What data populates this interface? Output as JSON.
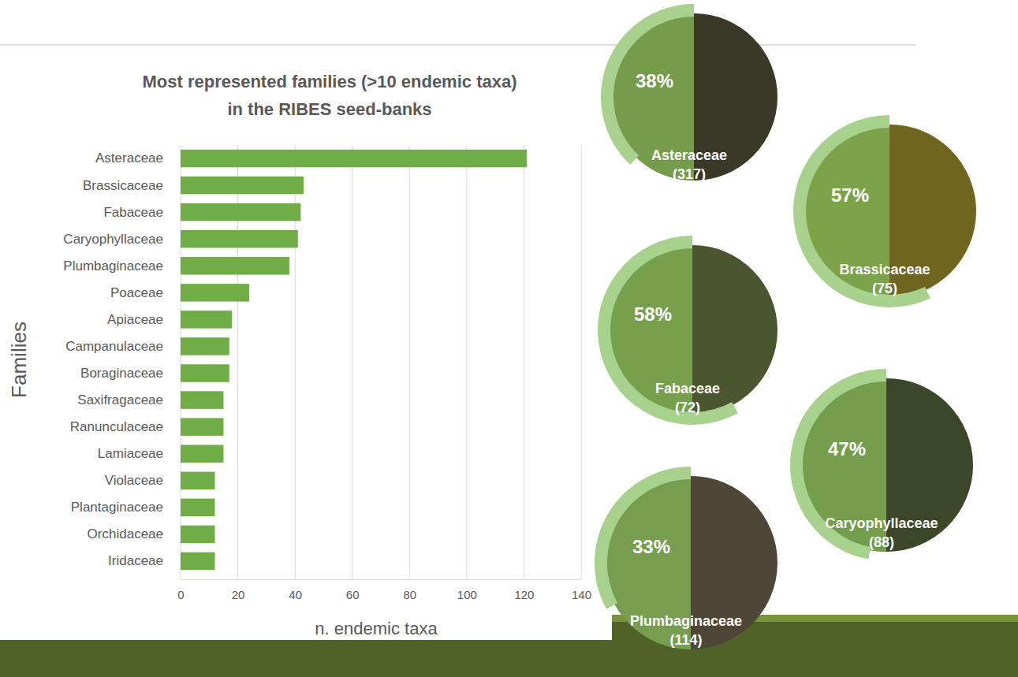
{
  "chart_data": [
    {
      "type": "bar",
      "orientation": "horizontal",
      "title": "Most represented families (>10 endemic taxa) in the RIBES seed-banks",
      "x_label": "n. endemic taxa",
      "y_label": "Families",
      "categories": [
        "Asteraceae",
        "Brassicaceae",
        "Fabaceae",
        "Caryophyllaceae",
        "Plumbaginaceae",
        "Poaceae",
        "Apiaceae",
        "Campanulaceae",
        "Boraginaceae",
        "Saxifragaceae",
        "Ranunculaceae",
        "Lamiaceae",
        "Violaceae",
        "Plantaginaceae",
        "Orchidaceae",
        "Iridaceae"
      ],
      "values": [
        121,
        43,
        42,
        41,
        38,
        24,
        18,
        17,
        17,
        15,
        15,
        15,
        12,
        12,
        12,
        12
      ],
      "color": "#70ad47",
      "xlim": [
        0,
        140
      ],
      "xticks": [
        0,
        20,
        40,
        60,
        80,
        100,
        120,
        140
      ],
      "grid": true
    },
    {
      "type": "donut",
      "categories": [
        "Asteraceae",
        "Brassicaceae",
        "Fabaceae",
        "Caryophyllaceae",
        "Plumbaginaceae"
      ],
      "values": [
        38,
        57,
        58,
        47,
        33
      ],
      "value_labels": [
        "38%",
        "57%",
        "58%",
        "47%",
        "33%"
      ],
      "totals": [
        317,
        75,
        72,
        88,
        114
      ],
      "total_labels": [
        "(317)",
        "(75)",
        "(72)",
        "(88)",
        "(114)"
      ],
      "color": "#a9d18e"
    }
  ]
}
